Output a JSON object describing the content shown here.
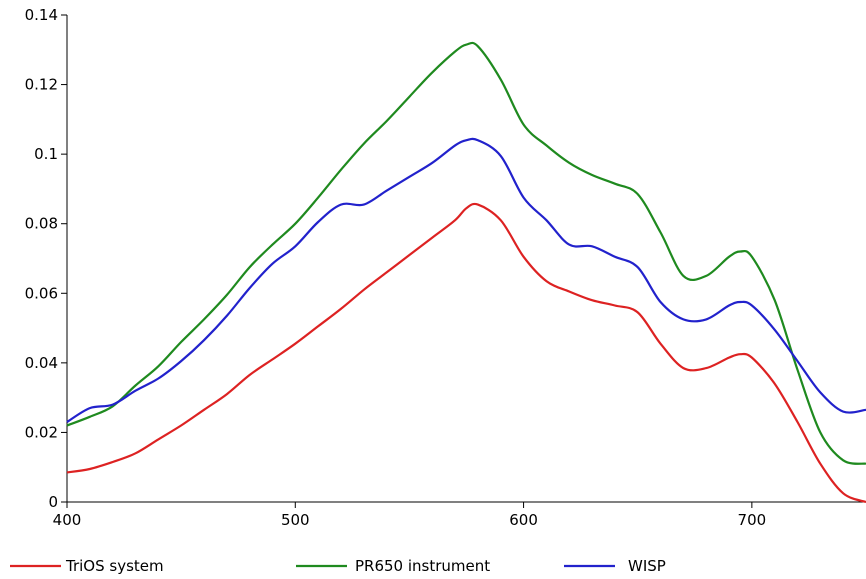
{
  "chart_data": {
    "type": "line",
    "title": "",
    "xlabel": "",
    "ylabel": "",
    "xlim": [
      400,
      750
    ],
    "ylim": [
      0,
      0.14
    ],
    "x_ticks": [
      {
        "value": 400,
        "label": "400"
      },
      {
        "value": 500,
        "label": "500"
      },
      {
        "value": 600,
        "label": "600"
      },
      {
        "value": 700,
        "label": "700"
      }
    ],
    "y_ticks": [
      {
        "value": 0,
        "label": "0"
      },
      {
        "value": 0.02,
        "label": "0.02"
      },
      {
        "value": 0.04,
        "label": "0.04"
      },
      {
        "value": 0.06,
        "label": "0.06"
      },
      {
        "value": 0.08,
        "label": "0.08"
      },
      {
        "value": 0.1,
        "label": "0.1"
      },
      {
        "value": 0.12,
        "label": "0.12"
      },
      {
        "value": 0.14,
        "label": "0.14"
      }
    ],
    "grid": false,
    "legend": "bottom",
    "x": [
      400,
      410,
      420,
      430,
      440,
      450,
      460,
      470,
      480,
      490,
      500,
      510,
      520,
      530,
      540,
      550,
      560,
      570,
      575,
      580,
      590,
      600,
      610,
      620,
      630,
      640,
      650,
      660,
      670,
      680,
      690,
      695,
      700,
      710,
      720,
      730,
      740,
      750
    ],
    "series": [
      {
        "name": "TriOS system",
        "color": "#dd2222",
        "values": [
          0.0085,
          0.0095,
          0.0115,
          0.014,
          0.018,
          0.022,
          0.0265,
          0.031,
          0.0365,
          0.041,
          0.0455,
          0.0505,
          0.0555,
          0.061,
          0.066,
          0.071,
          0.076,
          0.081,
          0.0845,
          0.0855,
          0.081,
          0.0705,
          0.0635,
          0.0605,
          0.058,
          0.0565,
          0.0545,
          0.0455,
          0.0385,
          0.0385,
          0.0415,
          0.0425,
          0.0415,
          0.034,
          0.023,
          0.011,
          0.0025,
          0.0
        ]
      },
      {
        "name": "PR650 instrument",
        "color": "#1f8a1f",
        "values": [
          0.022,
          0.0245,
          0.0275,
          0.0335,
          0.039,
          0.046,
          0.0525,
          0.0595,
          0.0675,
          0.074,
          0.08,
          0.0875,
          0.0955,
          0.103,
          0.1095,
          0.1165,
          0.1235,
          0.1295,
          0.1315,
          0.131,
          0.1215,
          0.1085,
          0.1025,
          0.0975,
          0.094,
          0.0915,
          0.0885,
          0.0775,
          0.065,
          0.065,
          0.0705,
          0.072,
          0.0705,
          0.058,
          0.038,
          0.02,
          0.012,
          0.011
        ]
      },
      {
        "name": "WISP",
        "color": "#2222cc",
        "values": [
          0.023,
          0.027,
          0.028,
          0.032,
          0.0355,
          0.0405,
          0.0465,
          0.0535,
          0.0615,
          0.0685,
          0.0735,
          0.0805,
          0.0855,
          0.0855,
          0.0895,
          0.0935,
          0.0975,
          0.1025,
          0.104,
          0.104,
          0.0995,
          0.0875,
          0.081,
          0.074,
          0.0735,
          0.0705,
          0.0675,
          0.0575,
          0.0525,
          0.0525,
          0.0565,
          0.0575,
          0.0565,
          0.0495,
          0.0405,
          0.0315,
          0.026,
          0.0265
        ]
      }
    ]
  }
}
